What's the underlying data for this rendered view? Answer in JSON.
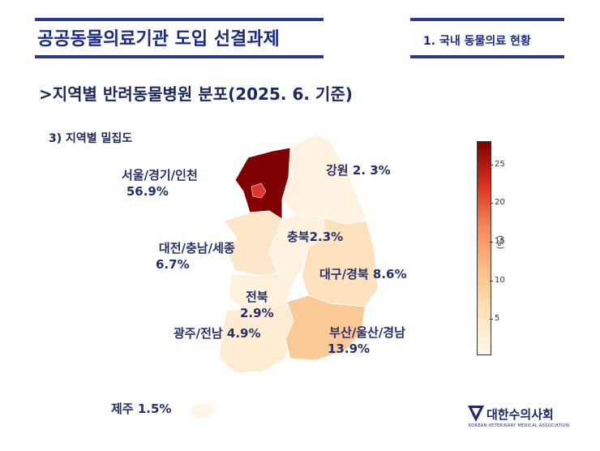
{
  "header": {
    "title": "공공동물의료기관 도입 선결과제",
    "section": "1. 국내 동물의료 현황"
  },
  "subtitle": ">지역별 반려동물병원 분포(2025. 6. 기준)",
  "sub_heading": "3) 지역별 밀집도",
  "regions": [
    {
      "name": "서울/경기/인천",
      "value": "56.9%",
      "pct": 56.9,
      "color": "#7f0000"
    },
    {
      "name": "강원",
      "value": "2. 3%",
      "pct": 2.3,
      "color": "#fff3df"
    },
    {
      "name": "충북",
      "value": "2.3%",
      "pct": 2.3,
      "color": "#fff3df"
    },
    {
      "name": "대전/충남/세종",
      "value": "6.7%",
      "pct": 6.7,
      "color": "#fde7c8"
    },
    {
      "name": "대구/경북",
      "value": "8.6%",
      "pct": 8.6,
      "color": "#fde2bd"
    },
    {
      "name": "전북",
      "value": "2.9%",
      "pct": 2.9,
      "color": "#fff1db"
    },
    {
      "name": "광주/전남",
      "value": "4.9%",
      "pct": 4.9,
      "color": "#feecd2"
    },
    {
      "name": "부산/울산/경남",
      "value": "13.9%",
      "pct": 13.9,
      "color": "#fbc995"
    },
    {
      "name": "제주",
      "value": "1.5%",
      "pct": 1.5,
      "color": "#fff6ea"
    }
  ],
  "colorbar": {
    "ticks": [
      "5",
      "10",
      "15",
      "20",
      "25"
    ],
    "unit": "(%)"
  },
  "logo": {
    "name": "대한수의사회",
    "english": "KOREAN VETERINARY MEDICAL ASSOCIATION"
  }
}
